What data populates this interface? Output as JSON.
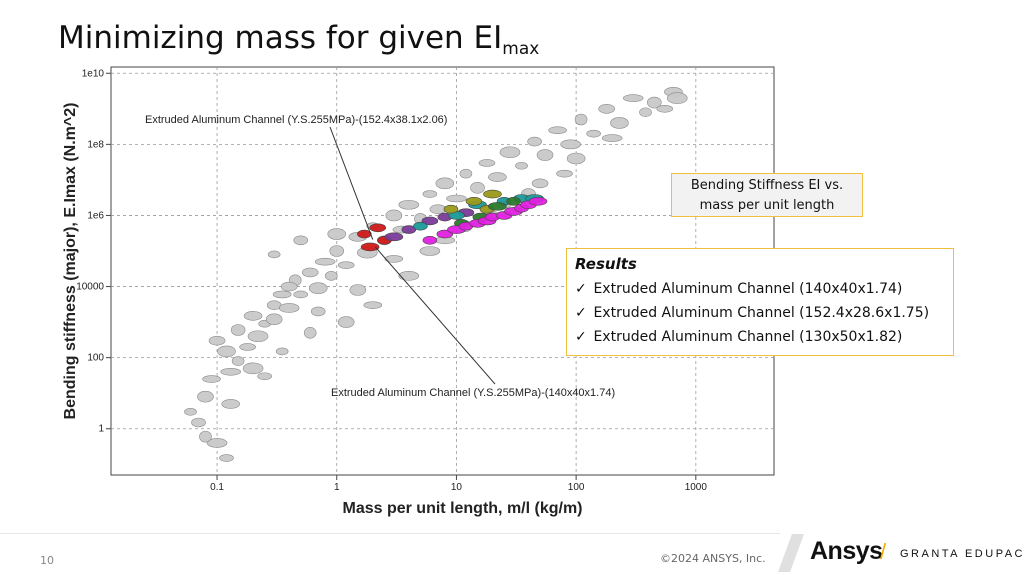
{
  "slide": {
    "title": "Minimizing mass for given EI",
    "title_sub": "max",
    "page_number": "10",
    "copyright": "©2024 ANSYS, Inc.",
    "logo_text": "Ansys",
    "logo_separator": "/",
    "logo_product": "GRANTA EDUPACK"
  },
  "callouts": {
    "bending_line1": "Bending Stiffness EI  vs.",
    "bending_line2": "mass per unit length",
    "results_title": "Results",
    "check_mark": "✓",
    "results_items": [
      "Extruded Aluminum Channel (140x40x1.74)",
      "Extruded Aluminum Channel (152.4x28.6x1.75)",
      "Extruded Aluminum Channel (130x50x1.82)"
    ]
  },
  "chart_data": {
    "type": "scatter",
    "xlabel": "Mass per unit length, m/l (kg/m)",
    "ylabel": "Bending stiffness (major), E.Imax (N.m^2)",
    "xscale": "log",
    "yscale": "log",
    "xlim": [
      0.013,
      4500
    ],
    "ylim": [
      0.05,
      15000000000
    ],
    "x_ticks": [
      {
        "value": 0.1,
        "label": "0.1"
      },
      {
        "value": 1,
        "label": "1"
      },
      {
        "value": 10,
        "label": "10"
      },
      {
        "value": 100,
        "label": "100"
      },
      {
        "value": 1000,
        "label": "1000"
      }
    ],
    "y_ticks": [
      {
        "value": 1,
        "label": "1"
      },
      {
        "value": 100,
        "label": "100"
      },
      {
        "value": 10000,
        "label": "10000"
      },
      {
        "value": 1000000,
        "label": "1e6"
      },
      {
        "value": 100000000,
        "label": "1e8"
      },
      {
        "value": 10000000000,
        "label": "1e10"
      }
    ],
    "grid": true,
    "colors": {
      "general": "#c8c8c8",
      "highlight": [
        "#d01818",
        "#7a3a9a",
        "#1a9a9a",
        "#9a9a1a",
        "#2a7a2a",
        "#e020e0"
      ]
    },
    "annotations": [
      {
        "text": "Extruded Aluminum Channel (Y.S.255MPa)-(152.4x38.1x2.06)",
        "point": [
          2.0,
          210000
        ]
      },
      {
        "text": "Extruded Aluminum Channel (Y.S.255MPa)-(140x40x1.74)",
        "point": [
          2.1,
          130000
        ]
      }
    ],
    "series": [
      {
        "values": [
          [
            0.06,
            3
          ],
          [
            0.07,
            1.5
          ],
          [
            0.08,
            8
          ],
          [
            0.09,
            25
          ],
          [
            0.1,
            0.4
          ],
          [
            0.08,
            0.6
          ],
          [
            0.12,
            0.15
          ],
          [
            0.1,
            300
          ],
          [
            0.12,
            150
          ],
          [
            0.13,
            40
          ],
          [
            0.15,
            80
          ],
          [
            0.15,
            600
          ],
          [
            0.18,
            200
          ],
          [
            0.2,
            1500
          ],
          [
            0.22,
            400
          ],
          [
            0.25,
            900
          ],
          [
            0.3,
            3000
          ],
          [
            0.3,
            1200
          ],
          [
            0.35,
            6000
          ],
          [
            0.4,
            2500
          ],
          [
            0.45,
            15000
          ],
          [
            0.5,
            6000
          ],
          [
            0.6,
            25000
          ],
          [
            0.7,
            9000
          ],
          [
            0.8,
            50000
          ],
          [
            0.9,
            20000
          ],
          [
            1.0,
            100000
          ],
          [
            1.2,
            40000
          ],
          [
            1.5,
            250000
          ],
          [
            1.8,
            90000
          ],
          [
            2.0,
            500000
          ],
          [
            2.5,
            200000
          ],
          [
            3.0,
            1000000
          ],
          [
            3.5,
            400000
          ],
          [
            4.0,
            2000000
          ],
          [
            5.0,
            800000
          ],
          [
            6.0,
            4000000
          ],
          [
            7.0,
            1500000
          ],
          [
            8.0,
            8000000
          ],
          [
            10,
            3000000
          ],
          [
            12,
            15000000
          ],
          [
            15,
            6000000
          ],
          [
            18,
            30000000
          ],
          [
            22,
            12000000
          ],
          [
            28,
            60000000
          ],
          [
            35,
            25000000
          ],
          [
            45,
            120000000
          ],
          [
            55,
            50000000
          ],
          [
            70,
            250000000
          ],
          [
            90,
            100000000
          ],
          [
            110,
            500000000
          ],
          [
            140,
            200000000
          ],
          [
            180,
            1000000000
          ],
          [
            230,
            400000000
          ],
          [
            300,
            2000000000
          ],
          [
            380,
            800000000
          ],
          [
            450,
            1500000000
          ],
          [
            550,
            1000000000
          ],
          [
            650,
            3000000000
          ],
          [
            700,
            2000000000
          ],
          [
            0.3,
            80000
          ],
          [
            0.5,
            200000
          ],
          [
            1.2,
            1000
          ],
          [
            2,
            3000
          ],
          [
            4,
            20000
          ],
          [
            0.6,
            500
          ],
          [
            0.25,
            30
          ],
          [
            0.4,
            10000
          ],
          [
            1.0,
            300000
          ],
          [
            8,
            200000
          ],
          [
            20,
            1000000
          ],
          [
            40,
            4000000
          ],
          [
            80,
            15000000
          ],
          [
            0.13,
            5
          ],
          [
            0.2,
            50
          ],
          [
            0.35,
            150
          ],
          [
            0.7,
            2000
          ],
          [
            1.5,
            8000
          ],
          [
            3,
            60000
          ],
          [
            6,
            100000
          ],
          [
            12,
            500000
          ],
          [
            25,
            2000000
          ],
          [
            50,
            8000000
          ],
          [
            100,
            40000000
          ],
          [
            200,
            150000000
          ]
        ]
      },
      {
        "values": [
          [
            1.7,
            300000
          ],
          [
            2.2,
            450000
          ],
          [
            1.9,
            130000
          ],
          [
            2.5,
            200000
          ]
        ]
      },
      {
        "values": [
          [
            4,
            400000
          ],
          [
            6,
            700000
          ],
          [
            3,
            250000
          ],
          [
            8,
            900000
          ],
          [
            12,
            1200000
          ]
        ]
      },
      {
        "values": [
          [
            5,
            500000
          ],
          [
            10,
            1000000
          ],
          [
            15,
            2000000
          ],
          [
            25,
            2500000
          ],
          [
            35,
            3000000
          ],
          [
            45,
            3000000
          ]
        ]
      },
      {
        "values": [
          [
            9,
            1500000
          ],
          [
            14,
            2500000
          ],
          [
            20,
            4000000
          ],
          [
            18,
            1500000
          ]
        ]
      },
      {
        "values": [
          [
            11,
            600000
          ],
          [
            16,
            900000
          ],
          [
            22,
            1800000
          ],
          [
            30,
            2500000
          ]
        ]
      },
      {
        "values": [
          [
            6,
            200000
          ],
          [
            8,
            300000
          ],
          [
            10,
            400000
          ],
          [
            12,
            500000
          ],
          [
            15,
            600000
          ],
          [
            18,
            700000
          ],
          [
            20,
            900000
          ],
          [
            25,
            1000000
          ],
          [
            30,
            1300000
          ],
          [
            35,
            1600000
          ],
          [
            40,
            2000000
          ],
          [
            48,
            2500000
          ]
        ]
      }
    ]
  }
}
